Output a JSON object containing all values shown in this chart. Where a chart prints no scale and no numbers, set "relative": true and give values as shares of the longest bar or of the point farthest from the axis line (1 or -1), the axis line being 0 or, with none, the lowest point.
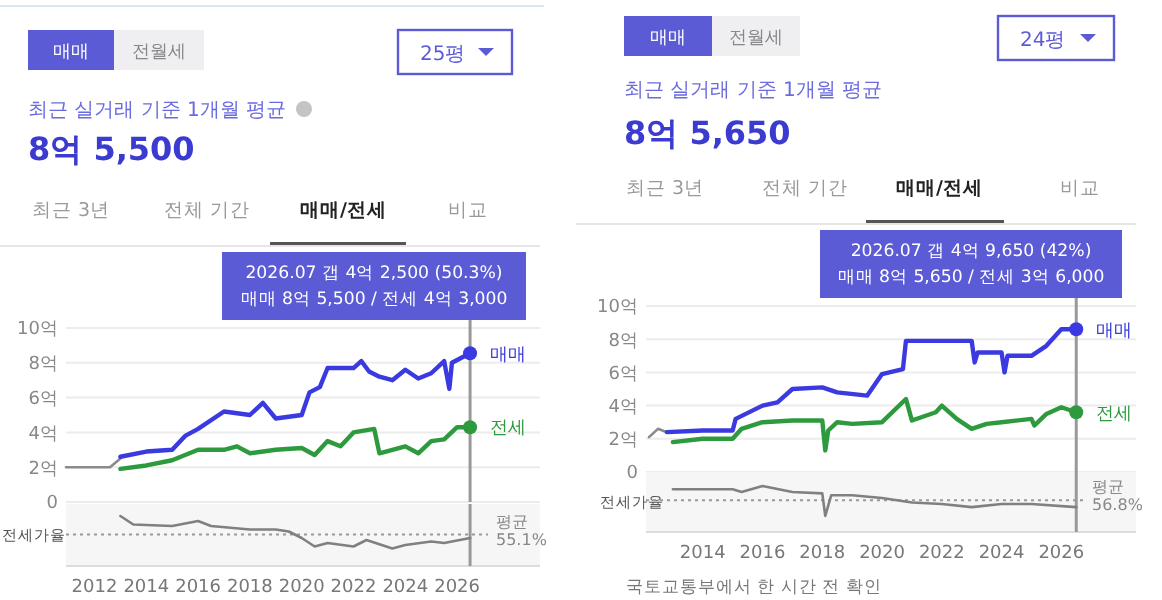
{
  "chart_data": [
    {
      "type": "line",
      "title": "최근 실거래 기준 1개월 평균",
      "subtitle": "8억 5,500",
      "xlim": [
        2010.9,
        2029.2
      ],
      "ylim": [
        0,
        10
      ],
      "yticks": [
        {
          "value": 0,
          "label": "0"
        },
        {
          "value": 2,
          "label": "2억"
        },
        {
          "value": 4,
          "label": "4억"
        },
        {
          "value": 6,
          "label": "6억"
        },
        {
          "value": 8,
          "label": "8억"
        },
        {
          "value": 10,
          "label": "10억"
        }
      ],
      "grid": "y",
      "tick_labels": "y",
      "series": [
        {
          "color": "#8a8a8a",
          "x": [
            2010.9,
            2012.6,
            2013.0
          ],
          "values": [
            2.0,
            2.0,
            2.5
          ]
        },
        {
          "name": "매매",
          "color": "#3a3ae0",
          "x": [
            2013,
            2014,
            2015,
            2015.5,
            2016,
            2017,
            2018,
            2018.5,
            2019,
            2020,
            2020.3,
            2020.7,
            2021,
            2022,
            2022.3,
            2022.6,
            2023,
            2023.5,
            2024,
            2024.5,
            2025,
            2025.5,
            2025.7,
            2025.8,
            2026.5
          ],
          "values": [
            2.6,
            2.9,
            3.0,
            3.8,
            4.2,
            5.2,
            5.0,
            5.7,
            4.8,
            5.0,
            6.3,
            6.6,
            7.7,
            7.7,
            8.1,
            7.5,
            7.2,
            7.0,
            7.6,
            7.1,
            7.4,
            8.1,
            6.5,
            8.0,
            8.55
          ]
        },
        {
          "name": "전세",
          "color": "#2e9a3e",
          "x": [
            2013,
            2014,
            2015,
            2016,
            2017,
            2017.5,
            2018,
            2019,
            2020,
            2020.5,
            2021,
            2021.5,
            2022,
            2022.8,
            2023,
            2023.5,
            2024,
            2024.5,
            2025,
            2025.5,
            2026,
            2026.5
          ],
          "values": [
            1.9,
            2.1,
            2.4,
            3.0,
            3.0,
            3.2,
            2.8,
            3.0,
            3.1,
            2.7,
            3.5,
            3.2,
            4.0,
            4.2,
            2.8,
            3.0,
            3.2,
            2.8,
            3.5,
            3.6,
            4.3,
            4.3
          ]
        }
      ],
      "ref_lines": [
        {
          "axis": "x",
          "value": 2026.5,
          "color": "#999999"
        }
      ],
      "annotations": [
        "매매",
        "전월세",
        "25평",
        "최근 3년",
        "전체 기간",
        "매매/전세",
        "비교",
        "2026.07 갭 4억 2,500 (50.3%)",
        "매매 8억 5,500 / 전세 4억 3,000"
      ]
    },
    {
      "type": "line",
      "ylabel": "전세가율",
      "relative": true,
      "xlim": [
        2010.9,
        2029.2
      ],
      "xticks": [
        2012,
        2014,
        2016,
        2018,
        2020,
        2022,
        2024,
        2026
      ],
      "tick_labels": "x",
      "series": [
        {
          "color": "#808080",
          "x": [
            2013,
            2013.5,
            2015,
            2016,
            2016.5,
            2018,
            2019,
            2019.5,
            2020,
            2020.5,
            2021,
            2022,
            2022.5,
            2023.5,
            2024,
            2025,
            2025.5,
            2026.5
          ],
          "values": [
            1.0,
            0.83,
            0.8,
            0.9,
            0.8,
            0.73,
            0.73,
            0.69,
            0.56,
            0.39,
            0.46,
            0.39,
            0.52,
            0.35,
            0.42,
            0.49,
            0.46,
            0.56
          ]
        }
      ],
      "ref_lines": [
        {
          "axis": "y",
          "value": 0.63,
          "label": "평균 55.1%",
          "line_style": "dotted",
          "color": "#999999"
        },
        {
          "axis": "x",
          "value": 2026.5,
          "color": "#999999"
        }
      ]
    },
    {
      "type": "line",
      "title": "최근 실거래 기준 1개월 평균",
      "subtitle": "8억 5,650",
      "xlim": [
        2012.1,
        2028.5
      ],
      "ylim": [
        0,
        10
      ],
      "yticks": [
        {
          "value": 0,
          "label": "0"
        },
        {
          "value": 2,
          "label": "2억"
        },
        {
          "value": 4,
          "label": "4억"
        },
        {
          "value": 6,
          "label": "6억"
        },
        {
          "value": 8,
          "label": "8억"
        },
        {
          "value": 10,
          "label": "10억"
        }
      ],
      "grid": "y",
      "tick_labels": "y",
      "series": [
        {
          "color": "#8a8a8a",
          "x": [
            2012.2,
            2012.5,
            2012.8
          ],
          "values": [
            2.1,
            2.6,
            2.4
          ]
        },
        {
          "name": "매매",
          "color": "#3a3ae0",
          "x": [
            2012.8,
            2014,
            2015,
            2015.1,
            2016,
            2016.5,
            2017,
            2018,
            2018.5,
            2019.5,
            2020,
            2020.7,
            2020.8,
            2022,
            2023,
            2023.1,
            2023.2,
            2024,
            2024.1,
            2024.2,
            2025,
            2025.5,
            2026,
            2026.5
          ],
          "values": [
            2.4,
            2.5,
            2.5,
            3.2,
            4.0,
            4.2,
            5.0,
            5.1,
            4.8,
            4.6,
            5.9,
            6.2,
            7.9,
            7.9,
            7.9,
            6.6,
            7.2,
            7.2,
            6.0,
            7.0,
            7.0,
            7.6,
            8.6,
            8.6
          ]
        },
        {
          "name": "전세",
          "color": "#2e9a3e",
          "x": [
            2013,
            2014,
            2015,
            2015.3,
            2016,
            2017,
            2018,
            2018.1,
            2018.2,
            2018.5,
            2019,
            2020,
            2020.8,
            2021,
            2021.8,
            2022,
            2022.5,
            2023,
            2023.5,
            2024,
            2025,
            2025.1,
            2025.5,
            2026,
            2026.5
          ],
          "values": [
            1.8,
            2.0,
            2.0,
            2.6,
            3.0,
            3.1,
            3.1,
            1.3,
            2.5,
            3.0,
            2.9,
            3.0,
            4.4,
            3.1,
            3.6,
            4.0,
            3.2,
            2.6,
            2.9,
            3.0,
            3.2,
            2.8,
            3.5,
            3.9,
            3.6
          ]
        }
      ],
      "ref_lines": [
        {
          "axis": "x",
          "value": 2026.5,
          "color": "#999999"
        }
      ],
      "annotations": [
        "매매",
        "전월세",
        "24평",
        "최근 3년",
        "전체 기간",
        "매매/전세",
        "비교",
        "2026.07 갭 4억 9,650 (42%)",
        "매매 8억 5,650 / 전세 3억 6,000"
      ]
    },
    {
      "type": "line",
      "ylabel": "전세가율",
      "relative": true,
      "xlim": [
        2012.1,
        2028.5
      ],
      "xticks": [
        2014,
        2016,
        2018,
        2020,
        2022,
        2024,
        2026
      ],
      "tick_labels": "x",
      "series": [
        {
          "color": "#808080",
          "x": [
            2013,
            2015,
            2015.3,
            2016,
            2017,
            2018,
            2018.1,
            2018.3,
            2019,
            2020,
            2021,
            2022,
            2023,
            2024,
            2025,
            2026.5
          ],
          "values": [
            0.93,
            0.93,
            0.87,
            1.0,
            0.87,
            0.84,
            0.35,
            0.8,
            0.8,
            0.74,
            0.64,
            0.61,
            0.54,
            0.61,
            0.61,
            0.54
          ]
        }
      ],
      "ref_lines": [
        {
          "axis": "y",
          "value": 0.69,
          "label": "평균 56.8%",
          "line_style": "dotted",
          "color": "#999999"
        },
        {
          "axis": "x",
          "value": 2026.5,
          "color": "#999999"
        }
      ],
      "annotations": [
        "국토교통부에서 한 시간 전 확인"
      ]
    }
  ]
}
